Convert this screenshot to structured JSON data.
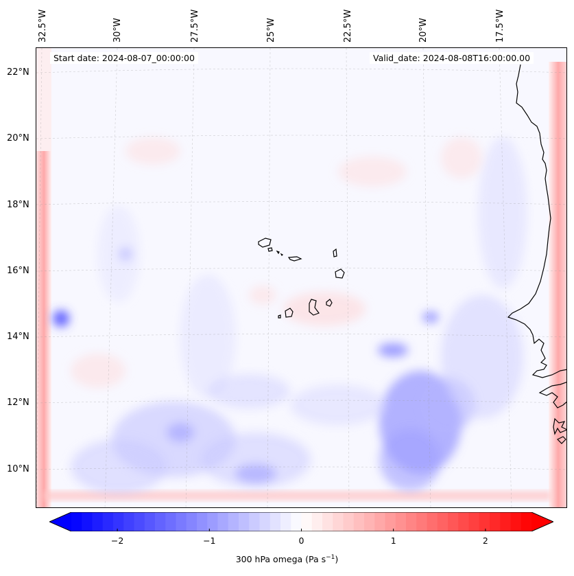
{
  "map": {
    "start_date": "Start date: 2024-08-07_00:00:00",
    "valid_date": "Valid_date: 2024-08-08T16:00:00.00",
    "lon_labels": [
      "32.5°W",
      "30°W",
      "27.5°W",
      "25°W",
      "22.5°W",
      "20°W",
      "17.5°W"
    ],
    "lat_labels": [
      "22°N",
      "20°N",
      "18°N",
      "16°N",
      "14°N",
      "12°N",
      "10°N"
    ],
    "colors": {
      "negative": "#0000ff",
      "neutral": "#ffffff",
      "positive": "#ff0000",
      "coast": "#000000"
    }
  },
  "colorbar": {
    "ticks": [
      "−2",
      "−1",
      "0",
      "1",
      "2"
    ],
    "tick_values": [
      -2,
      -1,
      0,
      1,
      2
    ],
    "range": [
      -2.75,
      2.75
    ],
    "label_main": "300 hPa omega (Pa s",
    "label_sup": "−1",
    "label_end": ")"
  }
}
